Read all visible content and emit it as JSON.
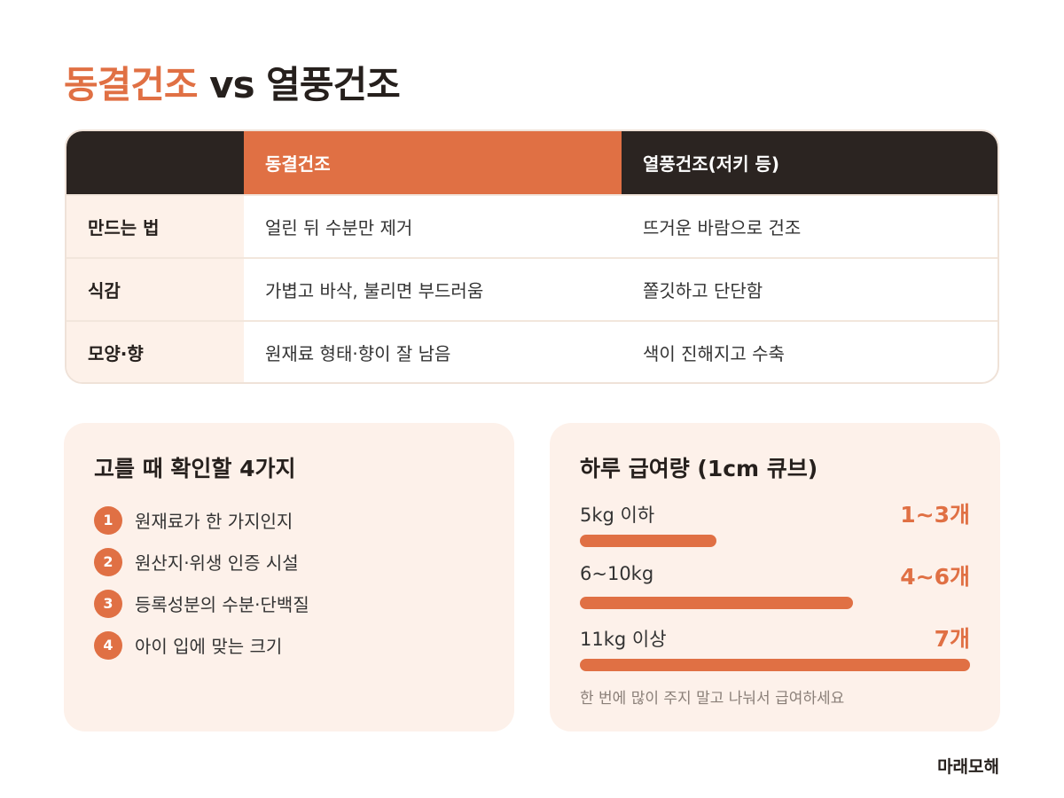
{
  "title": {
    "accent": "동결건조",
    "rest": " vs 열풍건조"
  },
  "comparison_table": {
    "header": [
      "",
      "동결건조",
      "열풍건조(저키 등)"
    ],
    "rows": [
      [
        "만드는 법",
        "얼린 뒤 수분만 제거",
        "뜨거운 바람으로 건조"
      ],
      [
        "식감",
        "가볍고 바삭, 불리면 부드러움",
        "쫄깃하고 단단함"
      ],
      [
        "모양·향",
        "원재료 형태·향이 잘 남음",
        "색이 진해지고 수축"
      ]
    ]
  },
  "checklist": {
    "title": "고를 때 확인할 4가지",
    "items": [
      {
        "num": "1",
        "label": "원재료가 한 가지인지"
      },
      {
        "num": "2",
        "label": "원산지·위생 인증 시설"
      },
      {
        "num": "3",
        "label": "등록성분의 수분·단백질"
      },
      {
        "num": "4",
        "label": "아이 입에 맞는 크기"
      }
    ]
  },
  "dosage": {
    "title": "하루 급여량 (1cm 큐브)",
    "items": [
      {
        "label": "5kg 이하",
        "value": "1~3개",
        "level": 0.35
      },
      {
        "label": "6~10kg",
        "value": "4~6개",
        "level": 0.7
      },
      {
        "label": "11kg 이상",
        "value": "7개",
        "level": 1.0
      }
    ],
    "note": "한 번에 많이 주지 말고 나눠서 급여하세요"
  },
  "brand": "마래모해",
  "colors": {
    "accent": "#e07044",
    "dark": "#2b2421",
    "card_bg": "#fdf1ea"
  }
}
